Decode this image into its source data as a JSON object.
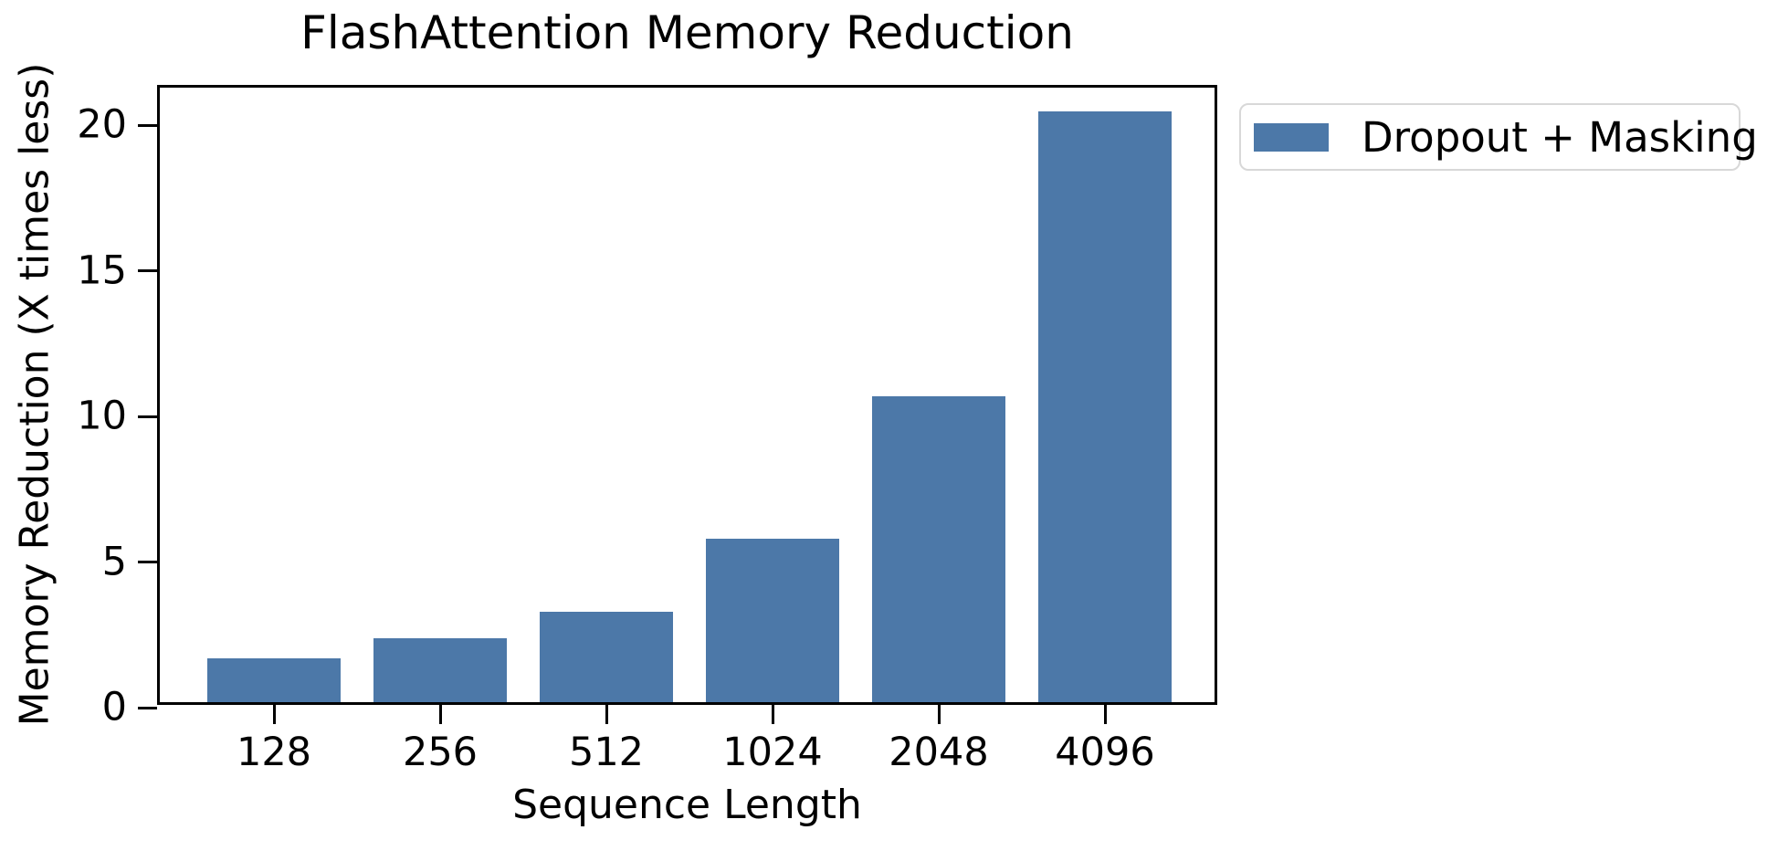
{
  "chart_data": {
    "type": "bar",
    "title": "FlashAttention Memory Reduction",
    "xlabel": "Sequence Length",
    "ylabel": "Memory Reduction (X times less)",
    "categories": [
      "128",
      "256",
      "512",
      "1024",
      "2048",
      "4096"
    ],
    "values": [
      1.5,
      2.2,
      3.1,
      5.6,
      10.5,
      20.3
    ],
    "series": [
      {
        "name": "Dropout + Masking",
        "values": [
          1.5,
          2.2,
          3.1,
          5.6,
          10.5,
          20.3
        ]
      }
    ],
    "yticks": [
      0,
      5,
      10,
      15,
      20
    ],
    "ylim": [
      0,
      21.3
    ],
    "grid": false,
    "legend": {
      "label": "Dropout + Masking",
      "position": "outside-upper-right"
    },
    "bar_color": "#4c78a8",
    "axis_color": "#000000",
    "legend_border_color": "#d8d8d8",
    "background_color": "#ffffff"
  }
}
